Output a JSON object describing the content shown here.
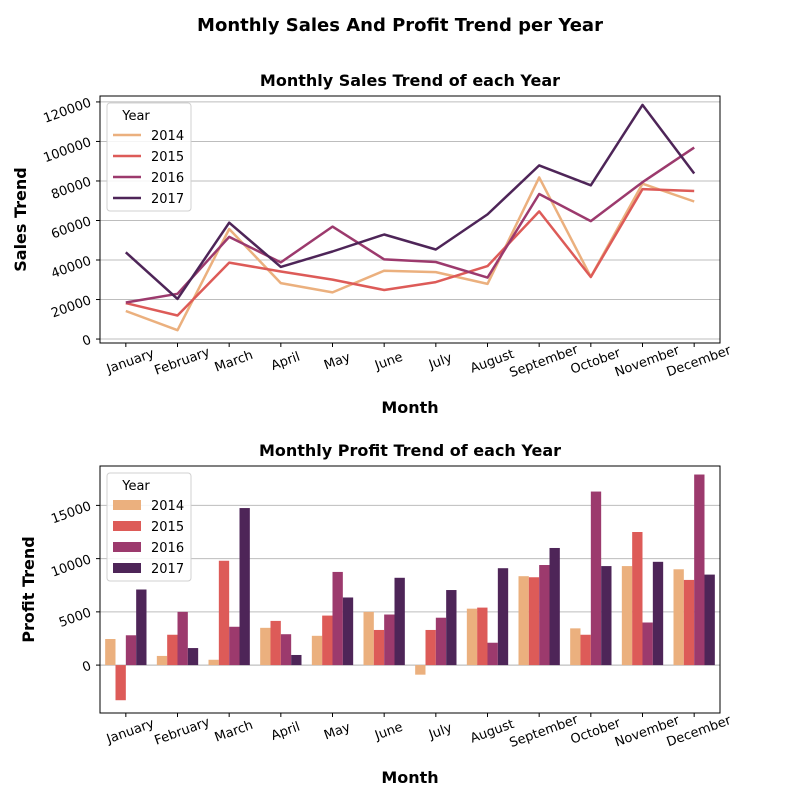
{
  "figure": {
    "suptitle": "Monthly Sales And Profit Trend per Year"
  },
  "colors": {
    "2014": "#ebb07e",
    "2015": "#dd5b58",
    "2016": "#9c3a6d",
    "2017": "#4e2558",
    "grid": "#bdbdbd"
  },
  "chart_data": [
    {
      "type": "line",
      "title": "Monthly Sales Trend of each Year",
      "xlabel": "Month",
      "ylabel": "Sales Trend",
      "categories": [
        "January",
        "February",
        "March",
        "April",
        "May",
        "June",
        "July",
        "August",
        "September",
        "October",
        "November",
        "December"
      ],
      "ylim": [
        -2000,
        123000
      ],
      "yticks": [
        0,
        20000,
        40000,
        60000,
        80000,
        100000,
        120000
      ],
      "grid": "y",
      "legend": {
        "title": "Year",
        "placement": "top-left"
      },
      "series": [
        {
          "name": "2014",
          "values": [
            14200,
            4500,
            55700,
            28300,
            23600,
            34600,
            33900,
            27900,
            81800,
            31500,
            78600,
            69600
          ]
        },
        {
          "name": "2015",
          "values": [
            18200,
            11900,
            38700,
            34200,
            30100,
            24800,
            28800,
            36900,
            64600,
            31400,
            75900,
            74900
          ]
        },
        {
          "name": "2016",
          "values": [
            18500,
            22900,
            51700,
            38800,
            56900,
            40300,
            39000,
            31100,
            73400,
            59700,
            79400,
            96900
          ]
        },
        {
          "name": "2017",
          "values": [
            43900,
            20300,
            58900,
            36500,
            44300,
            52900,
            45300,
            63100,
            87900,
            77800,
            118500,
            83800
          ]
        }
      ]
    },
    {
      "type": "bar",
      "title": "Monthly Profit Trend of each Year",
      "xlabel": "Month",
      "ylabel": "Profit Trend",
      "categories": [
        "January",
        "February",
        "March",
        "April",
        "May",
        "June",
        "July",
        "August",
        "September",
        "October",
        "November",
        "December"
      ],
      "ylim": [
        -4500,
        18700
      ],
      "yticks": [
        0,
        5000,
        10000,
        15000
      ],
      "grid": "y",
      "legend": {
        "title": "Year",
        "placement": "top-left"
      },
      "series": [
        {
          "name": "2014",
          "values": [
            2450,
            860,
            500,
            3500,
            2750,
            5000,
            -900,
            5300,
            8350,
            3450,
            9300,
            9000
          ]
        },
        {
          "name": "2015",
          "values": [
            -3300,
            2850,
            9800,
            4150,
            4650,
            3300,
            3300,
            5400,
            8250,
            2850,
            12500,
            8000
          ]
        },
        {
          "name": "2016",
          "values": [
            2800,
            5000,
            3600,
            2900,
            8750,
            4750,
            4450,
            2100,
            9400,
            16300,
            4000,
            17900
          ]
        },
        {
          "name": "2017",
          "values": [
            7100,
            1600,
            14750,
            950,
            6350,
            8200,
            7050,
            9100,
            11000,
            9300,
            9700,
            8500
          ]
        }
      ]
    }
  ]
}
